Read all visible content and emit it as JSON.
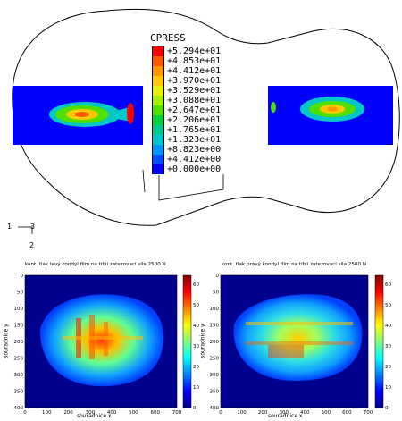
{
  "fea": {
    "legend_title": "CPRESS",
    "legend_values": [
      "+5.294e+01",
      "+4.853e+01",
      "+4.412e+01",
      "+3.970e+01",
      "+3.529e+01",
      "+3.088e+01",
      "+2.647e+01",
      "+2.206e+01",
      "+1.765e+01",
      "+1.323e+01",
      "+8.823e+00",
      "+4.412e+00",
      "+0.000e+00"
    ],
    "legend_colors": [
      "#ff0000",
      "#ff5a00",
      "#ff9600",
      "#ffc800",
      "#e6f000",
      "#a0f000",
      "#50e000",
      "#00d23c",
      "#00c88c",
      "#00c8c8",
      "#0096ff",
      "#0050ff",
      "#0000ff"
    ],
    "triad": {
      "axis1": "1",
      "axis2": "2",
      "axis3": "3"
    }
  },
  "heatmaps": [
    {
      "title": "kont. tlak levý kondyl film na tibii zatezovaci sila 2500 N",
      "xlabel": "souradnice x",
      "ylabel": "souradnice y",
      "xticks": [
        "0",
        "100",
        "200",
        "300",
        "400",
        "500",
        "600",
        "700"
      ],
      "yticks": [
        "0",
        "50",
        "100",
        "150",
        "200",
        "250",
        "300",
        "350",
        "400"
      ],
      "cbar_ticks": [
        "0",
        "10",
        "20",
        "30",
        "40",
        "50",
        "60"
      ]
    },
    {
      "title": "kont. tlak pravý kondyl film na tibii zatezovaci sila 2500 N",
      "xlabel": "souradnice x",
      "ylabel": "souradnice y",
      "xticks": [
        "0",
        "100",
        "200",
        "300",
        "400",
        "500",
        "600",
        "700"
      ],
      "yticks": [
        "0",
        "50",
        "100",
        "150",
        "200",
        "250",
        "300",
        "350",
        "400"
      ],
      "cbar_ticks": [
        "0",
        "10",
        "20",
        "30",
        "40",
        "50",
        "60"
      ]
    }
  ]
}
